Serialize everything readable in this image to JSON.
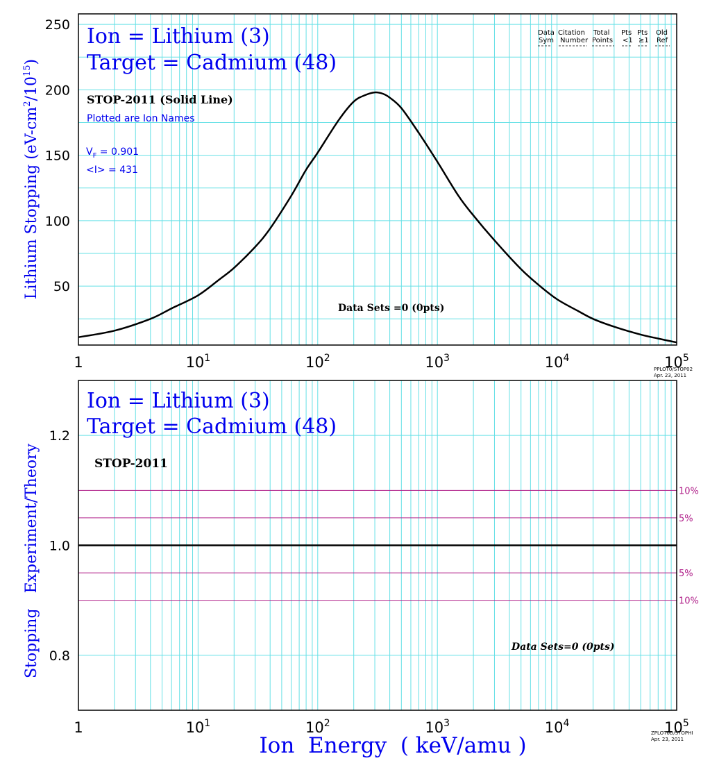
{
  "colors": {
    "grid": "#66e0e6",
    "axis": "#000000",
    "curve": "#000000",
    "annot": "#0000ee",
    "pct": "#b0208a"
  },
  "chart_data": [
    {
      "type": "line",
      "xscale": "log",
      "xlim": [
        1,
        100000
      ],
      "ylim": [
        5,
        258
      ],
      "grid": true,
      "ylabel": "Lithium Stopping (eV-cm²/10¹⁵)",
      "ylabel_parts": {
        "pre": "Lithium Stopping (eV-cm",
        "sup1": "2",
        "mid": "/10",
        "sup2": "15",
        "post": ")"
      },
      "yticks": [
        50,
        100,
        150,
        200,
        250
      ],
      "xticks": [
        {
          "base": "1",
          "exp": ""
        },
        {
          "base": "10",
          "exp": "1"
        },
        {
          "base": "10",
          "exp": "2"
        },
        {
          "base": "10",
          "exp": "3"
        },
        {
          "base": "10",
          "exp": "4"
        },
        {
          "base": "10",
          "exp": "5"
        }
      ],
      "title_line1": "Ion = Lithium (3)",
      "title_line2": "Target = Cadmium (48)",
      "model_label": "STOP-2011 (Solid Line)",
      "plotted_note": "Plotted are Ion Names",
      "vf_sym": "V",
      "vf_sub": "F",
      "vf_value": " = 0.901",
      "i_label": "<I> = 431",
      "data_sets_label": "Data Sets =0 (0pts)",
      "legend_header": {
        "row1": [
          "Data",
          "Citation",
          "Total",
          "Pts",
          "Pts",
          "Old"
        ],
        "row2": [
          "Sym",
          "Number",
          "Points",
          "<1",
          "≥1",
          "Ref"
        ]
      },
      "footer_line1": "PPLOT0/STOP02",
      "footer_line2": "Apr. 23, 2011",
      "series": [
        {
          "x": [
            1,
            2,
            4,
            6,
            10,
            15,
            20,
            30,
            40,
            60,
            80,
            100,
            150,
            200,
            250,
            300,
            350,
            400,
            500,
            700,
            1000,
            1500,
            2000,
            3000,
            5000,
            7000,
            10000,
            15000,
            20000,
            30000,
            50000,
            70000,
            100000
          ],
          "y": [
            11,
            16,
            25,
            33,
            43,
            55,
            64,
            80,
            94,
            119,
            139,
            152,
            177,
            191,
            196,
            198,
            197,
            194,
            186,
            167,
            145,
            119,
            104,
            85,
            63,
            51,
            40,
            31,
            25,
            19,
            13,
            10,
            7
          ]
        }
      ]
    },
    {
      "type": "line",
      "xscale": "log",
      "xlim": [
        1,
        100000
      ],
      "ylim": [
        0.7,
        1.3
      ],
      "grid": true,
      "yticks": [
        0.8,
        1.0,
        1.2
      ],
      "ytick_labels": [
        "0.8",
        "1.0",
        "1.2"
      ],
      "xticks": [
        {
          "base": "1",
          "exp": ""
        },
        {
          "base": "10",
          "exp": "1"
        },
        {
          "base": "10",
          "exp": "2"
        },
        {
          "base": "10",
          "exp": "3"
        },
        {
          "base": "10",
          "exp": "4"
        },
        {
          "base": "10",
          "exp": "5"
        }
      ],
      "ylabel_word1": "Stopping",
      "ylabel_word2": "Experiment/Theory",
      "xlabel": "Ion  Energy  ( keV/amu )",
      "title_line1": "Ion = Lithium (3)",
      "title_line2": "Target = Cadmium (48)",
      "model_label": "STOP-2011",
      "data_sets_label": "Data Sets=0 (0pts)",
      "reference_line": 1.0,
      "pct_lines": [
        {
          "y": 1.1,
          "label": "10%"
        },
        {
          "y": 1.05,
          "label": "5%"
        },
        {
          "y": 0.95,
          "label": "5%"
        },
        {
          "y": 0.9,
          "label": "10%"
        }
      ],
      "footer_line1": "ZPLOT0D/STOPHI",
      "footer_line2": "Apr. 23, 2011"
    }
  ]
}
